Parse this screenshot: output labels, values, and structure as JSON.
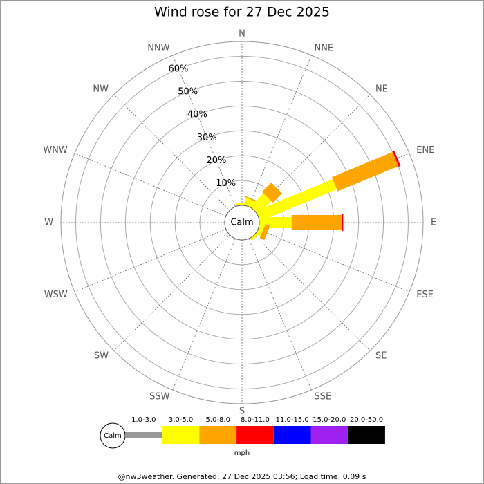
{
  "chart_data": {
    "type": "windrose",
    "title": "Wind rose for 27 Dec 2025",
    "center_label": "Calm",
    "units_label": "mph",
    "footer": "@nw3weather. Generated: 27 Dec 2025 03:56; Load time: 0.09 s",
    "categories": [
      "N",
      "NNE",
      "NE",
      "ENE",
      "E",
      "ESE",
      "SE",
      "SSE",
      "S",
      "SSW",
      "SW",
      "WSW",
      "W",
      "WNW",
      "NW",
      "NNW"
    ],
    "rlim": [
      0,
      66
    ],
    "rticks": [
      {
        "value": 10,
        "label": "10%"
      },
      {
        "value": 20,
        "label": "20%"
      },
      {
        "value": 30,
        "label": "30%"
      },
      {
        "value": 40,
        "label": "40%"
      },
      {
        "value": 50,
        "label": "50%"
      },
      {
        "value": 60,
        "label": "60%"
      }
    ],
    "series": [
      {
        "name": "1.0-3.0",
        "color": "#999999",
        "values": [
          0,
          0,
          0,
          0,
          0,
          0,
          0,
          0,
          0,
          0,
          0,
          0,
          0,
          0,
          0,
          0
        ]
      },
      {
        "name": "3.0-5.0",
        "color": "#ffff00",
        "values": [
          1,
          3,
          7.5,
          33.5,
          13,
          2,
          1,
          0,
          0,
          0,
          0,
          0,
          0,
          0,
          0,
          0
        ]
      },
      {
        "name": "5.0-8.0",
        "color": "#ffa500",
        "values": [
          0,
          0.5,
          5.3,
          26.5,
          20.3,
          2,
          0,
          0,
          0,
          0,
          0,
          0,
          0,
          0,
          0,
          0
        ]
      },
      {
        "name": "8.0-11.0",
        "color": "#ff0000",
        "values": [
          0,
          0,
          0,
          0.8,
          0.5,
          0,
          0,
          0,
          0,
          0,
          0,
          0,
          0,
          0,
          0,
          0
        ]
      },
      {
        "name": "11.0-15.0",
        "color": "#0000ff",
        "values": [
          0,
          0,
          0,
          0,
          0,
          0,
          0,
          0,
          0,
          0,
          0,
          0,
          0,
          0,
          0,
          0
        ]
      },
      {
        "name": "15.0-20.0",
        "color": "#a020f0",
        "values": [
          0,
          0,
          0,
          0,
          0,
          0,
          0,
          0,
          0,
          0,
          0,
          0,
          0,
          0,
          0,
          0
        ]
      },
      {
        "name": "20.0-50.0",
        "color": "#000000",
        "values": [
          0,
          0,
          0,
          0,
          0,
          0,
          0,
          0,
          0,
          0,
          0,
          0,
          0,
          0,
          0,
          0
        ]
      }
    ]
  }
}
